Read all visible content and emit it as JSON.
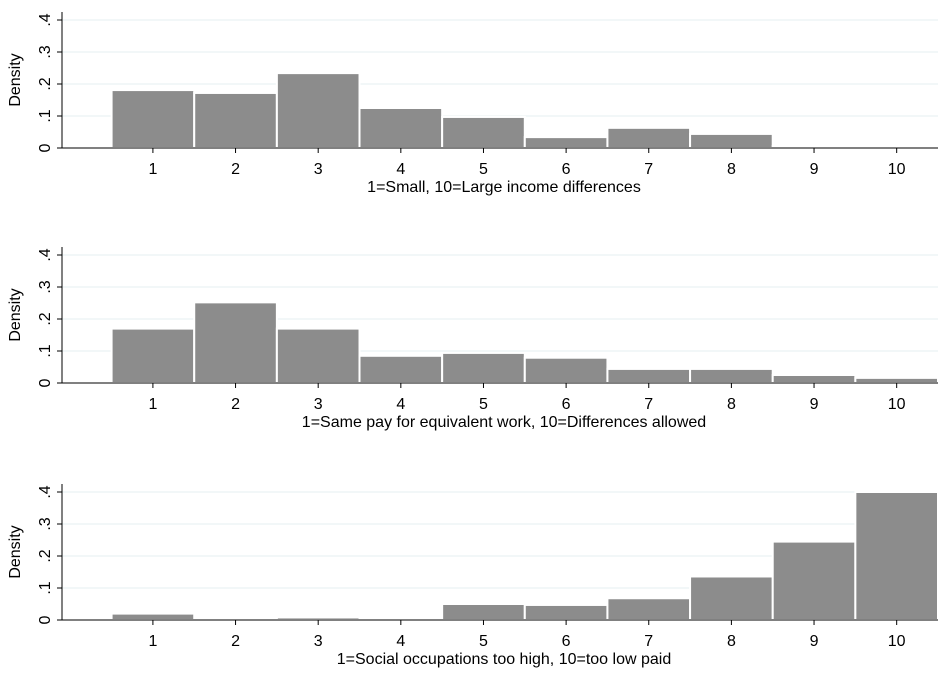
{
  "chart_data": [
    {
      "type": "histogram",
      "x_label": "1=Small, 10=Large income differences",
      "y_label": "Density",
      "bins": [
        0.5,
        1.5,
        2.5,
        3.5,
        4.5,
        5.5,
        6.5,
        7.5,
        8.5,
        9.5,
        10.5
      ],
      "values": [
        0.181,
        0.172,
        0.234,
        0.125,
        0.097,
        0.034,
        0.063,
        0.044,
        0.006,
        0.006
      ],
      "color": "#8c8c8c",
      "xlim": [
        -0.1,
        10.5
      ],
      "xticks": [
        1,
        2,
        3,
        4,
        5,
        6,
        7,
        8,
        9,
        10
      ],
      "ylim": [
        0,
        0.425
      ],
      "yticks": [
        0,
        {
          "value": 0.1,
          "label": ".1"
        },
        {
          "value": 0.2,
          "label": ".2"
        },
        {
          "value": 0.3,
          "label": ".3"
        },
        {
          "value": 0.4,
          "label": ".4"
        }
      ],
      "grid": true
    },
    {
      "type": "histogram",
      "x_label": "1=Same pay for equivalent work, 10=Differences allowed",
      "y_label": "Density",
      "bins": [
        0.5,
        1.5,
        2.5,
        3.5,
        4.5,
        5.5,
        6.5,
        7.5,
        8.5,
        9.5,
        10.5
      ],
      "values": [
        0.17,
        0.252,
        0.17,
        0.085,
        0.094,
        0.079,
        0.044,
        0.044,
        0.025,
        0.016
      ],
      "color": "#8c8c8c",
      "xlim": [
        -0.1,
        10.5
      ],
      "xticks": [
        1,
        2,
        3,
        4,
        5,
        6,
        7,
        8,
        9,
        10
      ],
      "ylim": [
        0,
        0.425
      ],
      "yticks": [
        0,
        {
          "value": 0.1,
          "label": ".1"
        },
        {
          "value": 0.2,
          "label": ".2"
        },
        {
          "value": 0.3,
          "label": ".3"
        },
        {
          "value": 0.4,
          "label": ".4"
        }
      ],
      "grid": true
    },
    {
      "type": "histogram",
      "x_label": "1=Social occupations too high, 10=too low paid",
      "y_label": "Density",
      "bins": [
        0.5,
        1.5,
        2.5,
        3.5,
        4.5,
        5.5,
        6.5,
        7.5,
        8.5,
        9.5,
        10.5
      ],
      "values": [
        0.02,
        0,
        0.008,
        0,
        0.05,
        0.047,
        0.068,
        0.136,
        0.245,
        0.4
      ],
      "color": "#8c8c8c",
      "xlim": [
        -0.1,
        10.5
      ],
      "xticks": [
        1,
        2,
        3,
        4,
        5,
        6,
        7,
        8,
        9,
        10
      ],
      "ylim": [
        0,
        0.425
      ],
      "yticks": [
        0,
        {
          "value": 0.1,
          "label": ".1"
        },
        {
          "value": 0.2,
          "label": ".2"
        },
        {
          "value": 0.3,
          "label": ".3"
        },
        {
          "value": 0.4,
          "label": ".4"
        }
      ],
      "grid": true
    }
  ]
}
